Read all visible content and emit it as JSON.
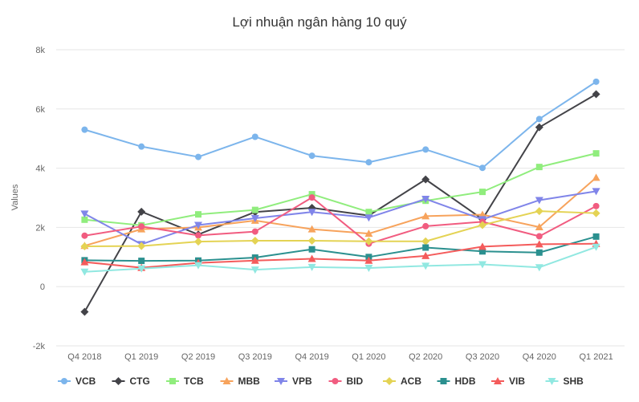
{
  "chart_data": {
    "type": "line",
    "title": "Lợi nhuận ngân hàng 10 quý",
    "xlabel": "",
    "ylabel": "Values",
    "ylim": [
      -2000,
      8000
    ],
    "yticks": [
      -2000,
      0,
      2000,
      4000,
      6000,
      8000
    ],
    "ytick_labels": [
      "-2k",
      "0",
      "2k",
      "4k",
      "6k",
      "8k"
    ],
    "grid": true,
    "legend_position": "bottom",
    "categories": [
      "Q4 2018",
      "Q1 2019",
      "Q2 2019",
      "Q3 2019",
      "Q4 2019",
      "Q1 2020",
      "Q2 2020",
      "Q3 2020",
      "Q4 2020",
      "Q1 2021"
    ],
    "series": [
      {
        "name": "VCB",
        "color": "#7cb5ec",
        "marker": "circle",
        "values": [
          5300,
          4730,
          4380,
          5060,
          4420,
          4200,
          4630,
          4010,
          5660,
          6920
        ]
      },
      {
        "name": "CTG",
        "color": "#434348",
        "marker": "diamond",
        "values": [
          -850,
          2530,
          1760,
          2520,
          2660,
          2400,
          3620,
          2280,
          5380,
          6500
        ]
      },
      {
        "name": "TCB",
        "color": "#90ed7d",
        "marker": "square",
        "values": [
          2260,
          2070,
          2440,
          2590,
          3120,
          2520,
          2900,
          3200,
          4040,
          4500
        ]
      },
      {
        "name": "MBB",
        "color": "#f7a35c",
        "marker": "triangle",
        "values": [
          1380,
          1940,
          2000,
          2230,
          1940,
          1790,
          2380,
          2430,
          2010,
          3680
        ]
      },
      {
        "name": "VPB",
        "color": "#8085e9",
        "marker": "triangle-down",
        "values": [
          2460,
          1430,
          2080,
          2310,
          2520,
          2330,
          2960,
          2270,
          2920,
          3220
        ]
      },
      {
        "name": "BID",
        "color": "#f15c80",
        "marker": "circle",
        "values": [
          1720,
          2030,
          1730,
          1860,
          3010,
          1450,
          2040,
          2190,
          1700,
          2720
        ]
      },
      {
        "name": "ACB",
        "color": "#e4d354",
        "marker": "diamond",
        "values": [
          1360,
          1370,
          1520,
          1550,
          1550,
          1530,
          1530,
          2080,
          2550,
          2480
        ]
      },
      {
        "name": "HDB",
        "color": "#2b908f",
        "marker": "square",
        "values": [
          890,
          870,
          880,
          980,
          1260,
          1000,
          1320,
          1190,
          1150,
          1690
        ]
      },
      {
        "name": "VIB",
        "color": "#f45b5b",
        "marker": "triangle",
        "values": [
          830,
          640,
          800,
          880,
          940,
          880,
          1040,
          1350,
          1430,
          1450
        ]
      },
      {
        "name": "SHB",
        "color": "#91e8e1",
        "marker": "triangle-down",
        "values": [
          500,
          610,
          720,
          570,
          660,
          630,
          700,
          750,
          650,
          1340
        ]
      }
    ]
  }
}
